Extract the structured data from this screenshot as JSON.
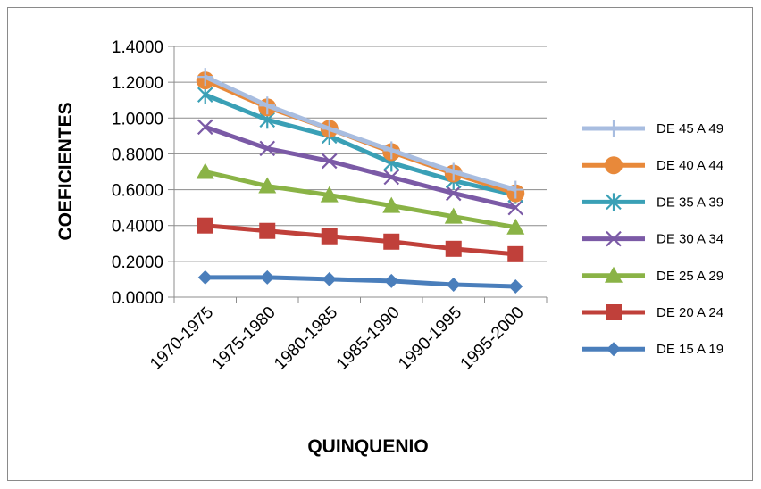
{
  "chart_data": {
    "type": "line",
    "title": "",
    "xlabel": "QUINQUENIO",
    "ylabel": "COEFICIENTES",
    "ylim": [
      0,
      1.4
    ],
    "y_ticks": [
      "0.0000",
      "0.2000",
      "0.4000",
      "0.6000",
      "0.8000",
      "1.0000",
      "1.2000",
      "1.4000"
    ],
    "grid": true,
    "legend_position": "right",
    "categories": [
      "1970-1975",
      "1975-1980",
      "1980-1985",
      "1985-1990",
      "1990-1995",
      "1995-2000"
    ],
    "series": [
      {
        "name": "DE 45 A 49",
        "color": "#a8bde0",
        "marker": "plus",
        "values": [
          1.23,
          1.07,
          0.94,
          0.82,
          0.7,
          0.6
        ]
      },
      {
        "name": "DE 40 A 44",
        "color": "#e8893a",
        "marker": "circle",
        "values": [
          1.21,
          1.06,
          0.94,
          0.81,
          0.69,
          0.58
        ]
      },
      {
        "name": "DE 35 A 39",
        "color": "#3aa0b6",
        "marker": "asterisk",
        "values": [
          1.13,
          0.99,
          0.9,
          0.75,
          0.65,
          0.57
        ]
      },
      {
        "name": "DE 30 A 34",
        "color": "#7b5aa6",
        "marker": "x",
        "values": [
          0.95,
          0.83,
          0.76,
          0.67,
          0.58,
          0.5
        ]
      },
      {
        "name": "DE 25 A 29",
        "color": "#8ab346",
        "marker": "triangle",
        "values": [
          0.7,
          0.62,
          0.57,
          0.51,
          0.45,
          0.39
        ]
      },
      {
        "name": "DE 20 A 24",
        "color": "#c0403a",
        "marker": "square",
        "values": [
          0.4,
          0.37,
          0.34,
          0.31,
          0.27,
          0.24
        ]
      },
      {
        "name": "DE 15 A 19",
        "color": "#4a7ebb",
        "marker": "diamond",
        "values": [
          0.11,
          0.11,
          0.1,
          0.09,
          0.07,
          0.06
        ]
      }
    ]
  }
}
